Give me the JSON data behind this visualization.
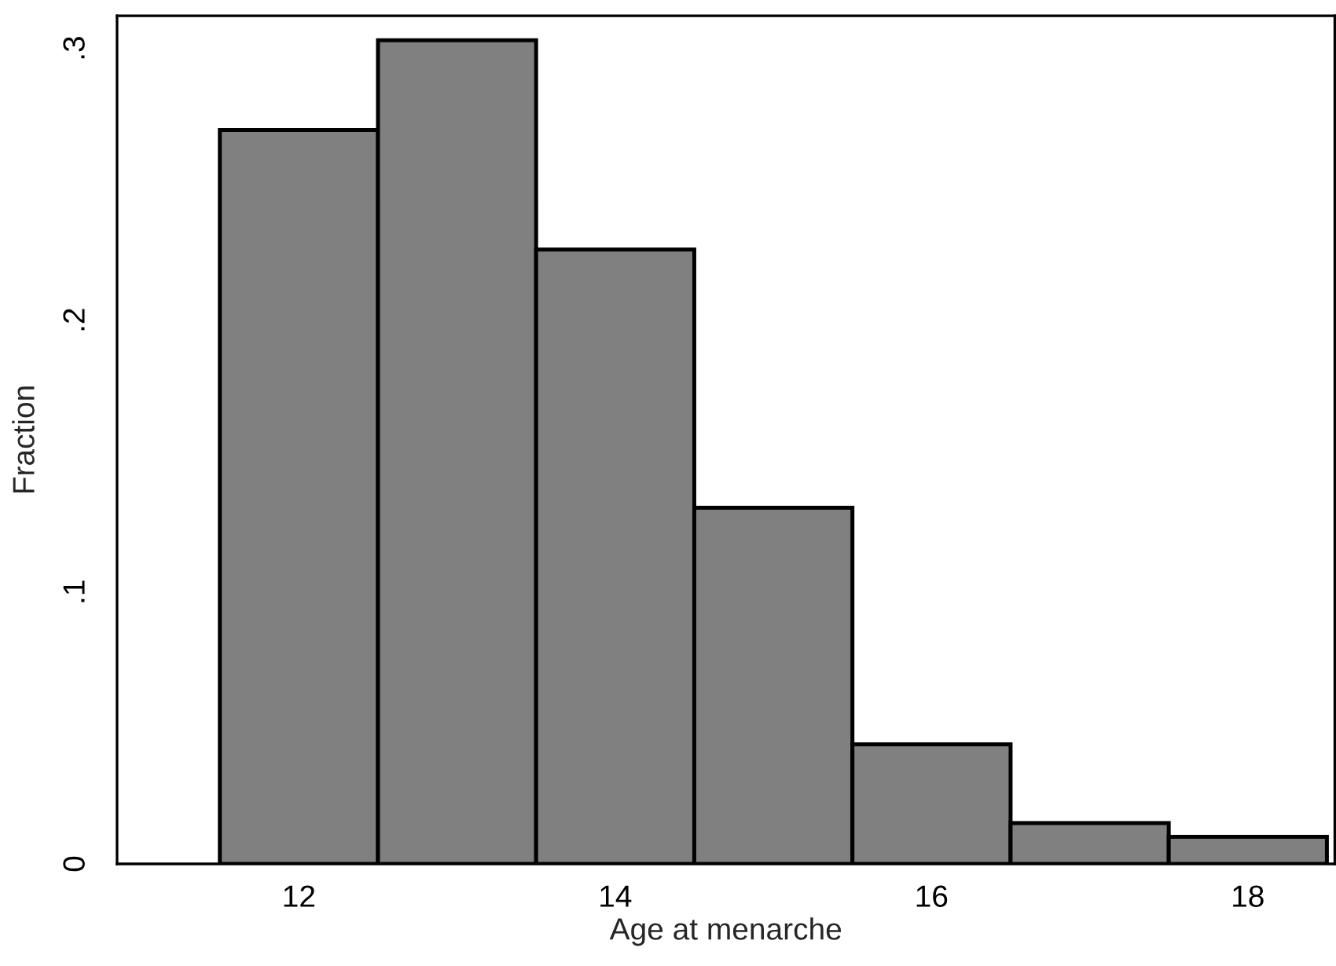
{
  "chart_data": {
    "type": "histogram",
    "xlabel": "Age at menarche",
    "ylabel": "Fraction",
    "bins": [
      11.5,
      12.5,
      13.5,
      14.5,
      15.5,
      16.5,
      17.5,
      18.5
    ],
    "values": [
      0.27,
      0.303,
      0.226,
      0.131,
      0.044,
      0.015,
      0.01
    ],
    "color": "#808080",
    "xlim": [
      10.85,
      18.55
    ],
    "ylim": [
      0,
      0.312
    ],
    "xticks": [
      12,
      14,
      16,
      18
    ],
    "yticks": [
      0,
      {
        "value": 0.1,
        "label": ".1"
      },
      {
        "value": 0.2,
        "label": ".2"
      },
      {
        "value": 0.3,
        "label": ".3"
      }
    ],
    "grid": false,
    "legend": false
  }
}
